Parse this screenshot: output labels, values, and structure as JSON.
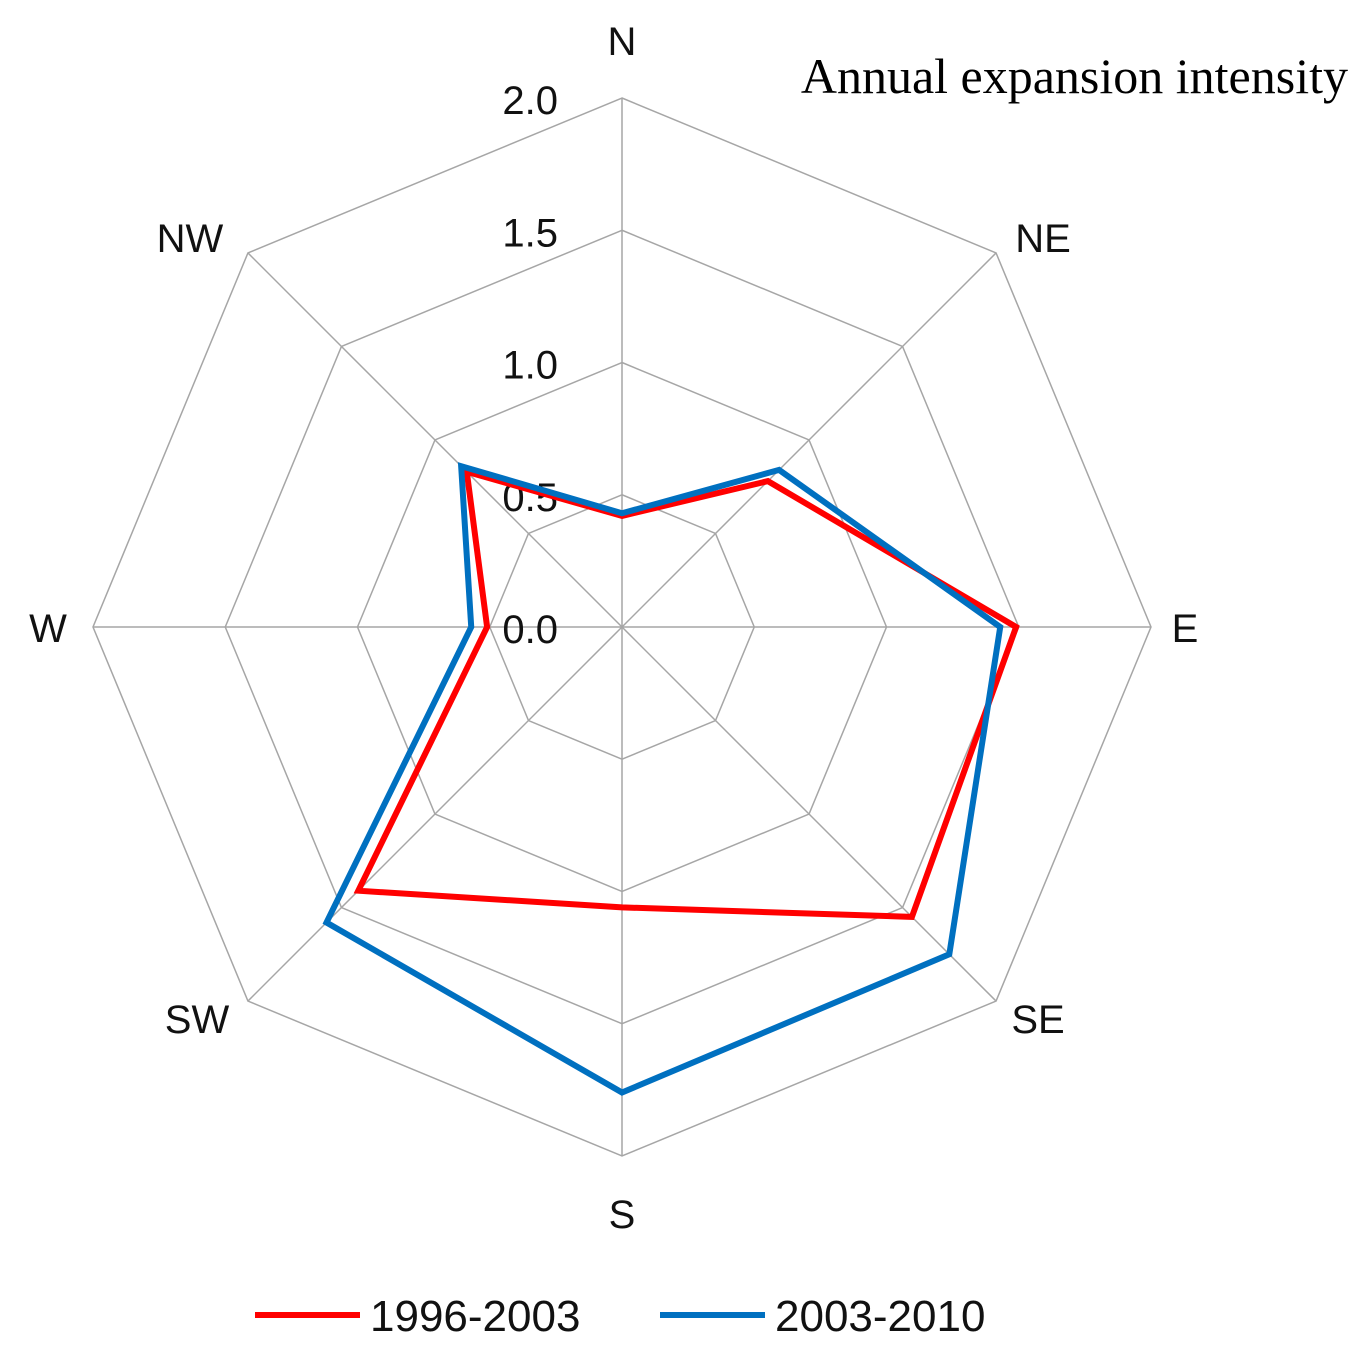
{
  "chart_data": {
    "type": "radar",
    "title": "Annual expansion intensity",
    "categories": [
      "N",
      "NE",
      "E",
      "SE",
      "S",
      "SW",
      "W",
      "NW"
    ],
    "rlim": [
      0,
      2.0
    ],
    "ticks": [
      "0.0",
      "0.5",
      "1.0",
      "1.5",
      "2.0"
    ],
    "tick_values": [
      0,
      0.5,
      1.0,
      1.5,
      2.0
    ],
    "grid": true,
    "legend_position": "bottom",
    "series": [
      {
        "name": "1996-2003",
        "color": "#ff0000",
        "values": [
          0.42,
          0.78,
          1.49,
          1.55,
          1.06,
          1.41,
          0.51,
          0.83
        ]
      },
      {
        "name": "2003-2010",
        "color": "#0070c0",
        "values": [
          0.43,
          0.84,
          1.43,
          1.75,
          1.76,
          1.58,
          0.57,
          0.86
        ]
      }
    ]
  }
}
